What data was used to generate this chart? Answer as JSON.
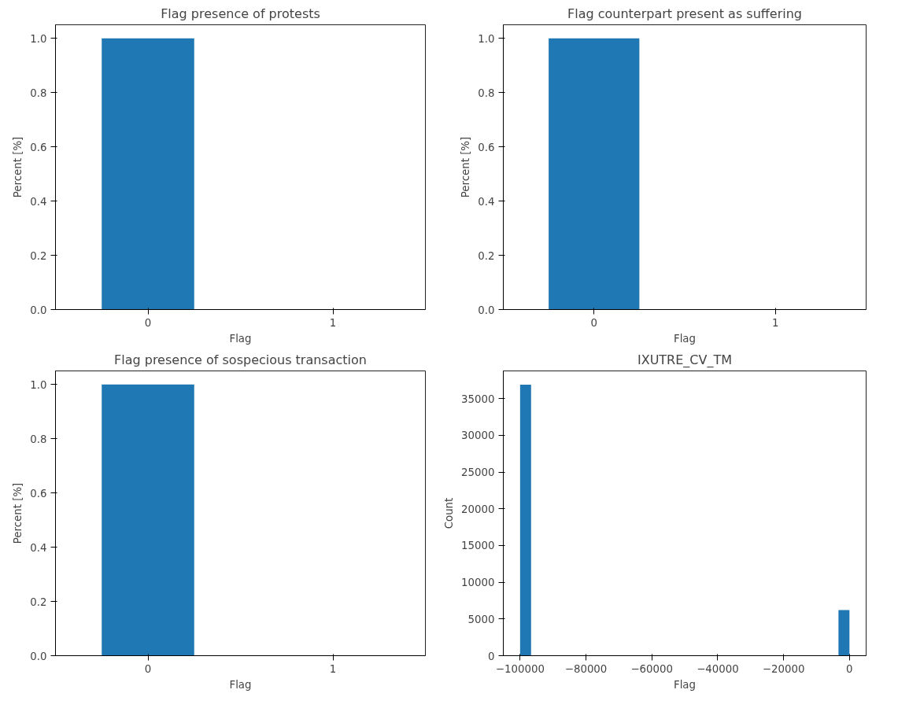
{
  "chart_data": [
    {
      "type": "bar",
      "title": "Flag presence of protests",
      "xlabel": "Flag",
      "ylabel": "Percent [%]",
      "categories": [
        "0",
        "1"
      ],
      "values": [
        1.0,
        0.0
      ],
      "color": "#1f77b4",
      "ylim": [
        0,
        1.05
      ],
      "yticks": [
        {
          "value": 0,
          "label": "0.0"
        },
        {
          "value": 0.2,
          "label": "0.2"
        },
        {
          "value": 0.4,
          "label": "0.4"
        },
        {
          "value": 0.6,
          "label": "0.6"
        },
        {
          "value": 0.8,
          "label": "0.8"
        },
        {
          "value": 1,
          "label": "1.0"
        }
      ]
    },
    {
      "type": "bar",
      "title": "Flag counterpart present as suffering",
      "xlabel": "Flag",
      "ylabel": "Percent [%]",
      "categories": [
        "0",
        "1"
      ],
      "values": [
        1.0,
        0.0
      ],
      "color": "#1f77b4",
      "ylim": [
        0,
        1.05
      ],
      "yticks": [
        {
          "value": 0,
          "label": "0.0"
        },
        {
          "value": 0.2,
          "label": "0.2"
        },
        {
          "value": 0.4,
          "label": "0.4"
        },
        {
          "value": 0.6,
          "label": "0.6"
        },
        {
          "value": 0.8,
          "label": "0.8"
        },
        {
          "value": 1,
          "label": "1.0"
        }
      ]
    },
    {
      "type": "bar",
      "title": "Flag presence of sospecious transaction",
      "xlabel": "Flag",
      "ylabel": "Percent [%]",
      "categories": [
        "0",
        "1"
      ],
      "values": [
        1.0,
        0.0
      ],
      "color": "#1f77b4",
      "ylim": [
        0,
        1.05
      ],
      "yticks": [
        {
          "value": 0,
          "label": "0.0"
        },
        {
          "value": 0.2,
          "label": "0.2"
        },
        {
          "value": 0.4,
          "label": "0.4"
        },
        {
          "value": 0.6,
          "label": "0.6"
        },
        {
          "value": 0.8,
          "label": "0.8"
        },
        {
          "value": 1,
          "label": "1.0"
        }
      ]
    },
    {
      "type": "histogram",
      "title": "IXUTRE_CV_TM",
      "xlabel": "Flag",
      "ylabel": "Count",
      "color": "#1f77b4",
      "bins": [
        -100000,
        -96667,
        -93333,
        -90000,
        -86667,
        -83333,
        -80000,
        -76667,
        -73333,
        -70000,
        -66667,
        -63333,
        -60000,
        -56667,
        -53333,
        -50000,
        -46667,
        -43333,
        -40000,
        -36667,
        -33333,
        -30000,
        -26667,
        -23333,
        -20000,
        -16667,
        -13333,
        -10000,
        -6667,
        -3333,
        0
      ],
      "values": [
        36900,
        0,
        0,
        0,
        0,
        0,
        0,
        0,
        0,
        0,
        0,
        0,
        0,
        0,
        0,
        0,
        0,
        0,
        0,
        0,
        0,
        0,
        0,
        0,
        0,
        0,
        0,
        0,
        0,
        6200
      ],
      "xlim": [
        -105100,
        5060
      ],
      "ylim": [
        0,
        38780
      ],
      "xticks": [
        {
          "value": -100000,
          "label": "−100000"
        },
        {
          "value": -80000,
          "label": "−80000"
        },
        {
          "value": -60000,
          "label": "−60000"
        },
        {
          "value": -40000,
          "label": "−40000"
        },
        {
          "value": -20000,
          "label": "−20000"
        },
        0
      ],
      "yticks": [
        0,
        5000,
        10000,
        15000,
        20000,
        25000,
        30000,
        35000
      ]
    }
  ]
}
